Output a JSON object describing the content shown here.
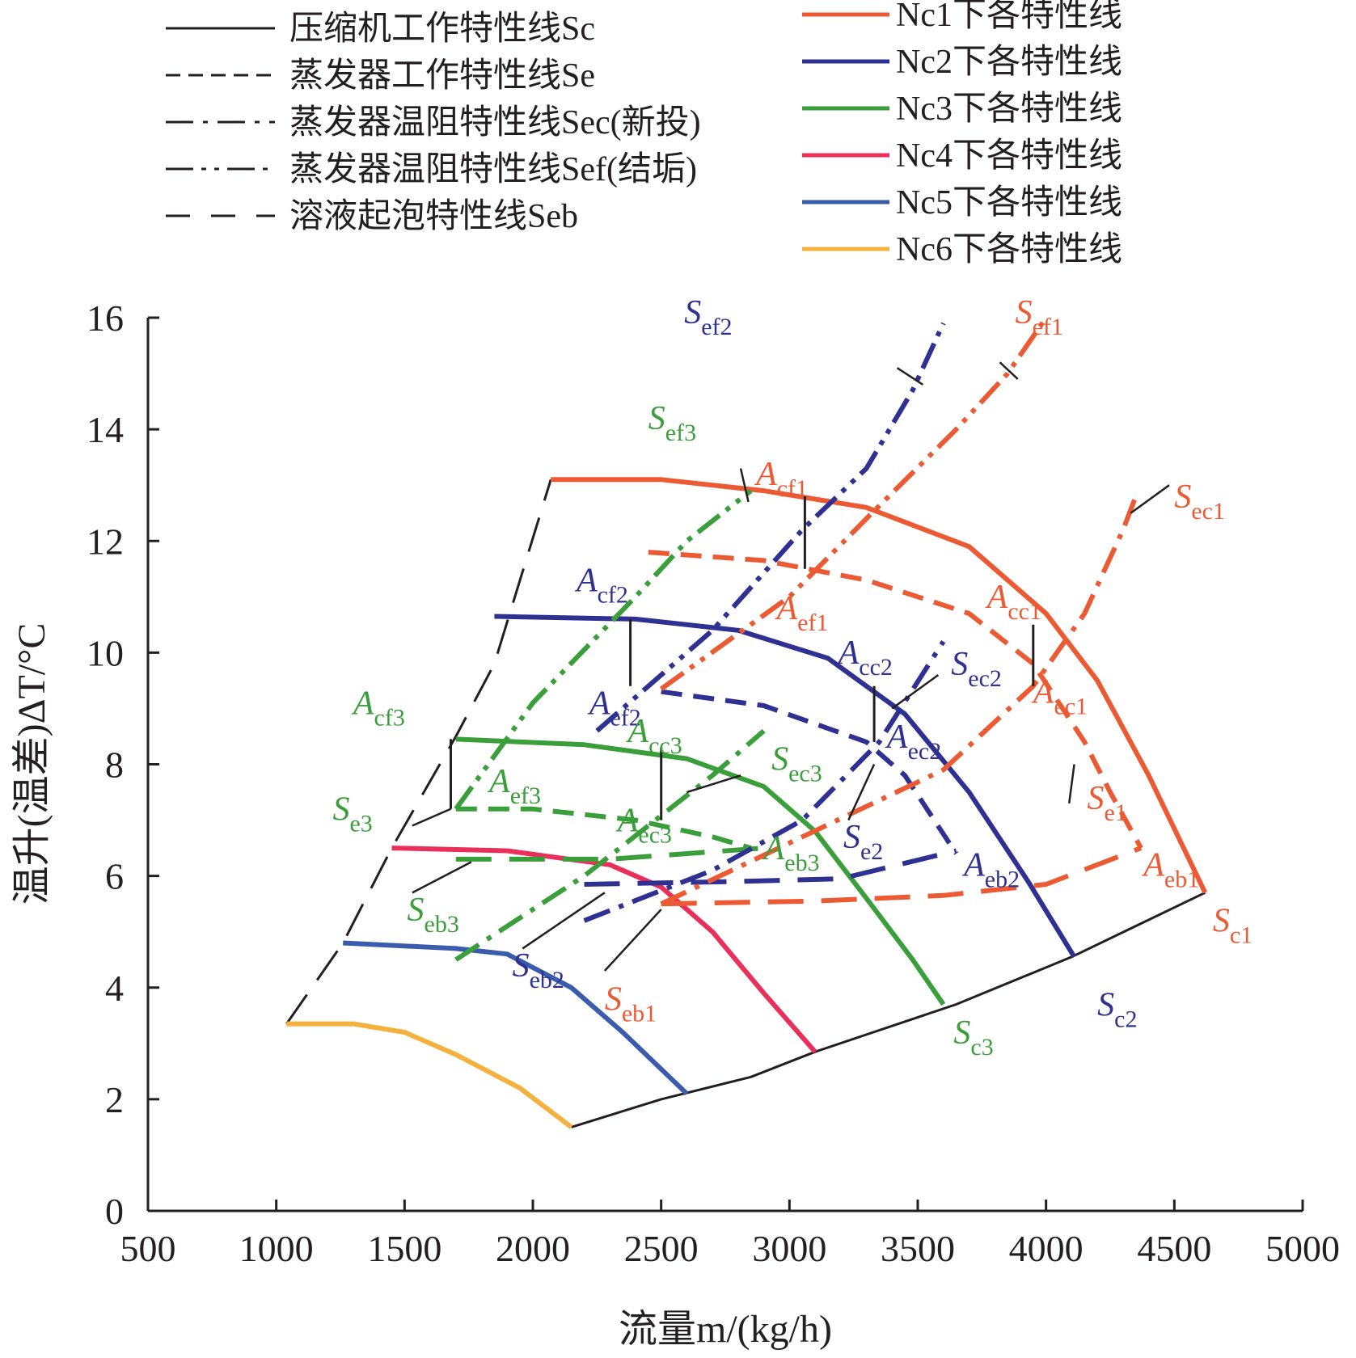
{
  "chart_data": {
    "type": "line",
    "xlabel": "流量m/(kg/h)",
    "ylabel": "温升(温差)ΔT/°C",
    "xlim": [
      500,
      5000
    ],
    "ylim": [
      0,
      16
    ],
    "xticks": [
      "500",
      "1000",
      "1500",
      "2000",
      "2500",
      "3000",
      "3500",
      "4000",
      "4500",
      "5000"
    ],
    "yticks": [
      "0",
      "2",
      "4",
      "6",
      "8",
      "10",
      "12",
      "14",
      "16"
    ],
    "grid": false,
    "legend_position": "top",
    "colors": {
      "Nc1": "#ec5a33",
      "Nc2": "#2e3192",
      "Nc3": "#3a9e3a",
      "Nc4": "#e8305a",
      "Nc5": "#3b5cad",
      "Nc6": "#f4b13e",
      "black": "#231f20"
    },
    "legend_styles": [
      {
        "text": "压缩机工作特性线Sc",
        "dash": "solid"
      },
      {
        "text": "蒸发器工作特性线Se",
        "dash": "dashed"
      },
      {
        "text": "蒸发器温阻特性线Sec(新投)",
        "dash": "dashdot"
      },
      {
        "text": "蒸发器温阻特性线Sef(结垢)",
        "dash": "dashdotdot"
      },
      {
        "text": "溶液起泡特性线Seb",
        "dash": "longdash"
      }
    ],
    "legend_speeds": [
      {
        "text": "Nc1下各特性线",
        "color": "#ec5a33"
      },
      {
        "text": "Nc2下各特性线",
        "color": "#2e3192"
      },
      {
        "text": "Nc3下各特性线",
        "color": "#3a9e3a"
      },
      {
        "text": "Nc4下各特性线",
        "color": "#e8305a"
      },
      {
        "text": "Nc5下各特性线",
        "color": "#3b5cad"
      },
      {
        "text": "Nc6下各特性线",
        "color": "#f4b13e"
      }
    ],
    "series": [
      {
        "color": "#231f20",
        "dash": "solid",
        "width": 3,
        "points": [
          [
            2150,
            1.5
          ],
          [
            2500,
            2.0
          ],
          [
            2850,
            2.4
          ],
          [
            3100,
            2.85
          ],
          [
            3650,
            3.7
          ],
          [
            4100,
            4.55
          ],
          [
            4620,
            5.7
          ]
        ]
      },
      {
        "color": "#231f20",
        "dash": "longdash",
        "width": 3,
        "points": [
          [
            1040,
            3.35
          ],
          [
            1260,
            4.8
          ],
          [
            1450,
            6.5
          ],
          [
            1700,
            8.5
          ],
          [
            1850,
            9.8
          ],
          [
            2070,
            13.1
          ]
        ]
      },
      {
        "color": "#ec5a33",
        "dash": "solid",
        "width": 6,
        "points": [
          [
            2070,
            13.1
          ],
          [
            2500,
            13.1
          ],
          [
            2900,
            12.9
          ],
          [
            3300,
            12.6
          ],
          [
            3700,
            11.9
          ],
          [
            4000,
            10.7
          ],
          [
            4200,
            9.5
          ],
          [
            4400,
            7.8
          ],
          [
            4620,
            5.7
          ]
        ]
      },
      {
        "color": "#2e3192",
        "dash": "solid",
        "width": 6,
        "points": [
          [
            1850,
            10.65
          ],
          [
            2400,
            10.6
          ],
          [
            2800,
            10.4
          ],
          [
            3150,
            9.9
          ],
          [
            3450,
            8.9
          ],
          [
            3700,
            7.5
          ],
          [
            3930,
            5.9
          ],
          [
            4110,
            4.55
          ]
        ]
      },
      {
        "color": "#3a9e3a",
        "dash": "solid",
        "width": 6,
        "points": [
          [
            1700,
            8.45
          ],
          [
            2200,
            8.35
          ],
          [
            2600,
            8.1
          ],
          [
            2900,
            7.6
          ],
          [
            3100,
            6.8
          ],
          [
            3300,
            5.6
          ],
          [
            3480,
            4.5
          ],
          [
            3600,
            3.7
          ]
        ]
      },
      {
        "color": "#e8305a",
        "dash": "solid",
        "width": 6,
        "points": [
          [
            1450,
            6.5
          ],
          [
            1900,
            6.45
          ],
          [
            2300,
            6.2
          ],
          [
            2500,
            5.8
          ],
          [
            2700,
            5.0
          ],
          [
            2900,
            3.9
          ],
          [
            3100,
            2.85
          ]
        ]
      },
      {
        "color": "#3b5cad",
        "dash": "solid",
        "width": 6,
        "points": [
          [
            1260,
            4.8
          ],
          [
            1700,
            4.7
          ],
          [
            1900,
            4.6
          ],
          [
            2150,
            4.0
          ],
          [
            2350,
            3.2
          ],
          [
            2600,
            2.1
          ]
        ]
      },
      {
        "color": "#f4b13e",
        "dash": "solid",
        "width": 6,
        "points": [
          [
            1040,
            3.35
          ],
          [
            1300,
            3.35
          ],
          [
            1500,
            3.2
          ],
          [
            1700,
            2.8
          ],
          [
            1950,
            2.2
          ],
          [
            2150,
            1.5
          ]
        ]
      },
      {
        "color": "#ec5a33",
        "dash": "dashed",
        "width": 6,
        "points": [
          [
            2450,
            11.8
          ],
          [
            2900,
            11.65
          ],
          [
            3300,
            11.3
          ],
          [
            3700,
            10.7
          ],
          [
            3950,
            9.8
          ],
          [
            4150,
            8.4
          ],
          [
            4250,
            7.5
          ],
          [
            4370,
            6.5
          ]
        ]
      },
      {
        "color": "#2e3192",
        "dash": "dashed",
        "width": 6,
        "points": [
          [
            2500,
            9.3
          ],
          [
            2900,
            9.05
          ],
          [
            3300,
            8.4
          ],
          [
            3450,
            7.8
          ],
          [
            3650,
            6.4
          ]
        ]
      },
      {
        "color": "#3a9e3a",
        "dash": "dashed",
        "width": 6,
        "points": [
          [
            1700,
            7.2
          ],
          [
            2000,
            7.2
          ],
          [
            2400,
            7.0
          ],
          [
            2700,
            6.7
          ],
          [
            2850,
            6.5
          ]
        ]
      },
      {
        "color": "#ec5a33",
        "dash": "longdash",
        "width": 6,
        "points": [
          [
            2500,
            5.5
          ],
          [
            3100,
            5.55
          ],
          [
            3600,
            5.65
          ],
          [
            4000,
            5.85
          ],
          [
            4370,
            6.5
          ]
        ]
      },
      {
        "color": "#2e3192",
        "dash": "longdash",
        "width": 6,
        "points": [
          [
            2200,
            5.85
          ],
          [
            2800,
            5.9
          ],
          [
            3200,
            5.95
          ],
          [
            3650,
            6.45
          ]
        ]
      },
      {
        "color": "#3a9e3a",
        "dash": "longdash",
        "width": 6,
        "points": [
          [
            1700,
            6.3
          ],
          [
            2300,
            6.3
          ],
          [
            2900,
            6.5
          ]
        ]
      },
      {
        "color": "#ec5a33",
        "dash": "dashdotdot",
        "width": 6,
        "points": [
          [
            2500,
            9.35
          ],
          [
            3000,
            11.0
          ],
          [
            3300,
            12.4
          ],
          [
            3650,
            14.0
          ],
          [
            3850,
            15.0
          ],
          [
            4000,
            16.0
          ]
        ]
      },
      {
        "color": "#2e3192",
        "dash": "dashdotdot",
        "width": 6,
        "points": [
          [
            2250,
            8.6
          ],
          [
            2700,
            10.4
          ],
          [
            3050,
            12.2
          ],
          [
            3300,
            13.3
          ],
          [
            3480,
            14.7
          ],
          [
            3600,
            15.9
          ]
        ]
      },
      {
        "color": "#3a9e3a",
        "dash": "dashdotdot",
        "width": 6,
        "points": [
          [
            1700,
            7.2
          ],
          [
            2000,
            9.1
          ],
          [
            2400,
            11.0
          ],
          [
            2600,
            12.0
          ],
          [
            2850,
            12.9
          ]
        ]
      },
      {
        "color": "#ec5a33",
        "dash": "dashdot",
        "width": 6,
        "points": [
          [
            2500,
            5.5
          ],
          [
            3050,
            6.7
          ],
          [
            3600,
            7.9
          ],
          [
            3950,
            9.4
          ],
          [
            4150,
            10.7
          ],
          [
            4300,
            12.2
          ],
          [
            4350,
            12.8
          ]
        ]
      },
      {
        "color": "#2e3192",
        "dash": "dashdot",
        "width": 6,
        "points": [
          [
            2200,
            5.2
          ],
          [
            2700,
            6.1
          ],
          [
            3050,
            7.0
          ],
          [
            3350,
            8.4
          ],
          [
            3600,
            10.2
          ]
        ]
      },
      {
        "color": "#3a9e3a",
        "dash": "dashdot",
        "width": 6,
        "points": [
          [
            1700,
            4.5
          ],
          [
            2200,
            6.0
          ],
          [
            2450,
            6.9
          ],
          [
            2700,
            7.8
          ],
          [
            2900,
            8.6
          ]
        ]
      },
      {
        "color": "#231f20",
        "dash": "solid",
        "width": 3,
        "points": [
          [
            3950,
            10.5
          ],
          [
            3950,
            9.4
          ]
        ]
      },
      {
        "color": "#231f20",
        "dash": "solid",
        "width": 3,
        "points": [
          [
            3060,
            12.8
          ],
          [
            3060,
            11.5
          ]
        ]
      },
      {
        "color": "#231f20",
        "dash": "solid",
        "width": 3,
        "points": [
          [
            3330,
            9.4
          ],
          [
            3330,
            8.4
          ]
        ]
      },
      {
        "color": "#231f20",
        "dash": "solid",
        "width": 3,
        "points": [
          [
            2380,
            10.6
          ],
          [
            2380,
            9.4
          ]
        ]
      },
      {
        "color": "#231f20",
        "dash": "solid",
        "width": 3,
        "points": [
          [
            2500,
            8.3
          ],
          [
            2500,
            7.0
          ]
        ]
      },
      {
        "color": "#231f20",
        "dash": "solid",
        "width": 3,
        "points": [
          [
            1680,
            8.45
          ],
          [
            1680,
            7.2
          ]
        ]
      }
    ],
    "annotations": [
      {
        "main": "S",
        "sub": "ef2",
        "color": "#2e3192",
        "x": 2590,
        "y": 15.9,
        "lead": [
          [
            3520,
            14.8
          ],
          [
            3420,
            15.1
          ]
        ]
      },
      {
        "main": "S",
        "sub": "ef1",
        "color": "#ec5a33",
        "x": 3880,
        "y": 15.9,
        "lead": [
          [
            3890,
            14.9
          ],
          [
            3820,
            15.2
          ]
        ]
      },
      {
        "main": "S",
        "sub": "ef3",
        "color": "#3a9e3a",
        "x": 2450,
        "y": 14.0,
        "lead": [
          [
            2840,
            12.7
          ],
          [
            2810,
            13.3
          ]
        ]
      },
      {
        "main": "A",
        "sub": "cf1",
        "color": "#ec5a33",
        "x": 2870,
        "y": 13.0
      },
      {
        "main": "S",
        "sub": "ec1",
        "color": "#ec5a33",
        "x": 4500,
        "y": 12.6,
        "lead": [
          [
            4330,
            12.5
          ],
          [
            4480,
            13.0
          ]
        ]
      },
      {
        "main": "A",
        "sub": "cc1",
        "color": "#ec5a33",
        "x": 3770,
        "y": 10.8
      },
      {
        "main": "A",
        "sub": "ef1",
        "color": "#ec5a33",
        "x": 2950,
        "y": 10.6
      },
      {
        "main": "A",
        "sub": "cf2",
        "color": "#2e3192",
        "x": 2170,
        "y": 11.1
      },
      {
        "main": "A",
        "sub": "cc2",
        "color": "#2e3192",
        "x": 3190,
        "y": 9.8
      },
      {
        "main": "S",
        "sub": "ec2",
        "color": "#2e3192",
        "x": 3630,
        "y": 9.6,
        "lead": [
          [
            3400,
            9.0
          ],
          [
            3580,
            9.6
          ]
        ]
      },
      {
        "main": "A",
        "sub": "ef2",
        "color": "#2e3192",
        "x": 2220,
        "y": 8.9
      },
      {
        "main": "A",
        "sub": "ec1",
        "color": "#ec5a33",
        "x": 3950,
        "y": 9.1
      },
      {
        "main": "A",
        "sub": "cf3",
        "color": "#3a9e3a",
        "x": 1300,
        "y": 8.9
      },
      {
        "main": "A",
        "sub": "cc3",
        "color": "#3a9e3a",
        "x": 2370,
        "y": 8.4
      },
      {
        "main": "A",
        "sub": "ec2",
        "color": "#2e3192",
        "x": 3380,
        "y": 8.3
      },
      {
        "main": "S",
        "sub": "ec3",
        "color": "#3a9e3a",
        "x": 2930,
        "y": 7.9,
        "lead": [
          [
            2600,
            7.5
          ],
          [
            2810,
            7.8
          ]
        ]
      },
      {
        "main": "S",
        "sub": "e1",
        "color": "#ec5a33",
        "x": 4160,
        "y": 7.2,
        "lead": [
          [
            4110,
            8.0
          ],
          [
            4090,
            7.3
          ]
        ]
      },
      {
        "main": "A",
        "sub": "ef3",
        "color": "#3a9e3a",
        "x": 1830,
        "y": 7.5
      },
      {
        "main": "S",
        "sub": "e3",
        "color": "#3a9e3a",
        "x": 1220,
        "y": 7.0,
        "lead": [
          [
            1680,
            7.2
          ],
          [
            1530,
            6.9
          ]
        ]
      },
      {
        "main": "A",
        "sub": "ec3",
        "color": "#3a9e3a",
        "x": 2330,
        "y": 6.8
      },
      {
        "main": "S",
        "sub": "e2",
        "color": "#2e3192",
        "x": 3210,
        "y": 6.5,
        "lead": [
          [
            3330,
            8.0
          ],
          [
            3230,
            7.0
          ]
        ]
      },
      {
        "main": "A",
        "sub": "eb3",
        "color": "#3a9e3a",
        "x": 2900,
        "y": 6.3
      },
      {
        "main": "A",
        "sub": "eb2",
        "color": "#2e3192",
        "x": 3680,
        "y": 6.0
      },
      {
        "main": "A",
        "sub": "eb1",
        "color": "#ec5a33",
        "x": 4380,
        "y": 6.0
      },
      {
        "main": "S",
        "sub": "eb3",
        "color": "#3a9e3a",
        "x": 1510,
        "y": 5.2,
        "lead": [
          [
            1760,
            6.25
          ],
          [
            1530,
            5.7
          ]
        ]
      },
      {
        "main": "S",
        "sub": "c1",
        "color": "#ec5a33",
        "x": 4650,
        "y": 5.0
      },
      {
        "main": "S",
        "sub": "eb2",
        "color": "#2e3192",
        "x": 1920,
        "y": 4.2,
        "lead": [
          [
            2280,
            5.7
          ],
          [
            1960,
            4.7
          ]
        ]
      },
      {
        "main": "S",
        "sub": "eb1",
        "color": "#ec5a33",
        "x": 2280,
        "y": 3.6,
        "lead": [
          [
            2500,
            5.4
          ],
          [
            2280,
            4.3
          ]
        ]
      },
      {
        "main": "S",
        "sub": "c2",
        "color": "#2e3192",
        "x": 4200,
        "y": 3.5
      },
      {
        "main": "S",
        "sub": "c3",
        "color": "#3a9e3a",
        "x": 3640,
        "y": 3.0
      }
    ]
  }
}
